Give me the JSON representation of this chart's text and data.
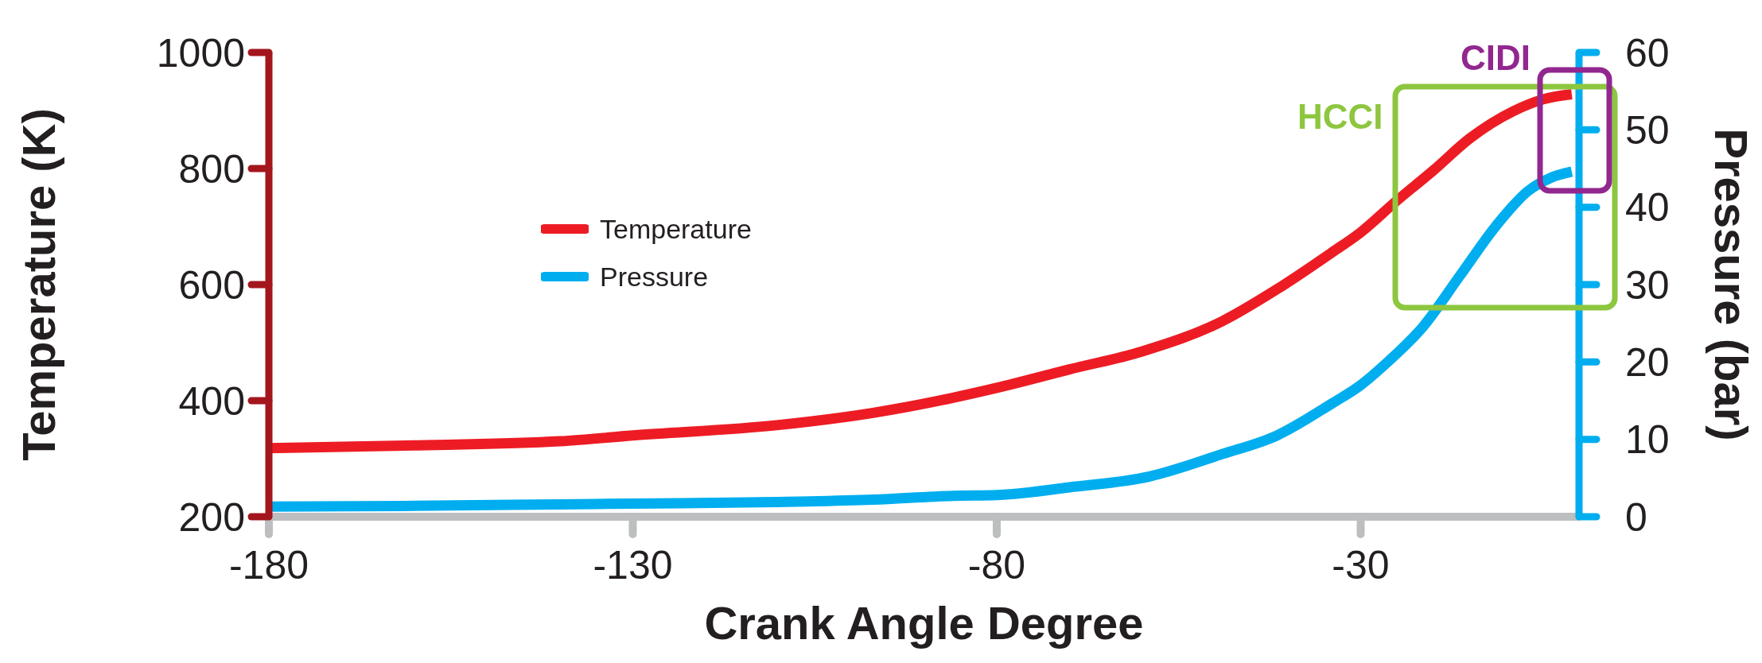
{
  "chart_data": {
    "type": "line",
    "xlabel": "Crank Angle Degree",
    "ylabel": "Temperature (K)",
    "y2label": "Pressure (bar)",
    "xlim": [
      -180,
      0
    ],
    "xticks": [
      -180,
      -130,
      -80,
      -30
    ],
    "ylim": [
      200,
      1000
    ],
    "yticks": [
      200,
      400,
      600,
      800,
      1000
    ],
    "y2lim": [
      0,
      60
    ],
    "y2ticks": [
      0,
      10,
      20,
      30,
      40,
      50,
      60
    ],
    "legend": "top left",
    "marker": "none",
    "line_style": "solid",
    "annotations": [
      "HCCI",
      "CIDI"
    ],
    "series": [
      {
        "name": "Temperature",
        "color": "#ed1c24",
        "x": [
          -180,
          -160,
          -140,
          -130,
          -110,
          -97,
          -86,
          -80,
          -70,
          -60,
          -49,
          -41.5,
          -34,
          -30,
          -25,
          -20,
          -15,
          -9,
          -5,
          -1
        ],
        "values": [
          318,
          323,
          330,
          340,
          358,
          379,
          405,
          422,
          454,
          485,
          537,
          592,
          655,
          690,
          745,
          797,
          852,
          899,
          919,
          928
        ]
      },
      {
        "name": "Pressure",
        "color": "#00aeef",
        "axis": "y2",
        "x": [
          -180,
          -160,
          -140,
          -130,
          -110,
          -97,
          -86,
          -80,
          -70,
          -59,
          -49,
          -41.5,
          -34,
          -30,
          -26.4,
          -21.4,
          -16.4,
          -11.4,
          -7,
          -3.9,
          -1
        ],
        "values": [
          1.3,
          1.4,
          1.6,
          1.7,
          1.9,
          2.2,
          2.7,
          2.8,
          3.8,
          5.2,
          8.1,
          10.5,
          14.6,
          17.0,
          19.9,
          24.6,
          31.1,
          37.6,
          42.1,
          43.8,
          44.6
        ]
      }
    ]
  }
}
